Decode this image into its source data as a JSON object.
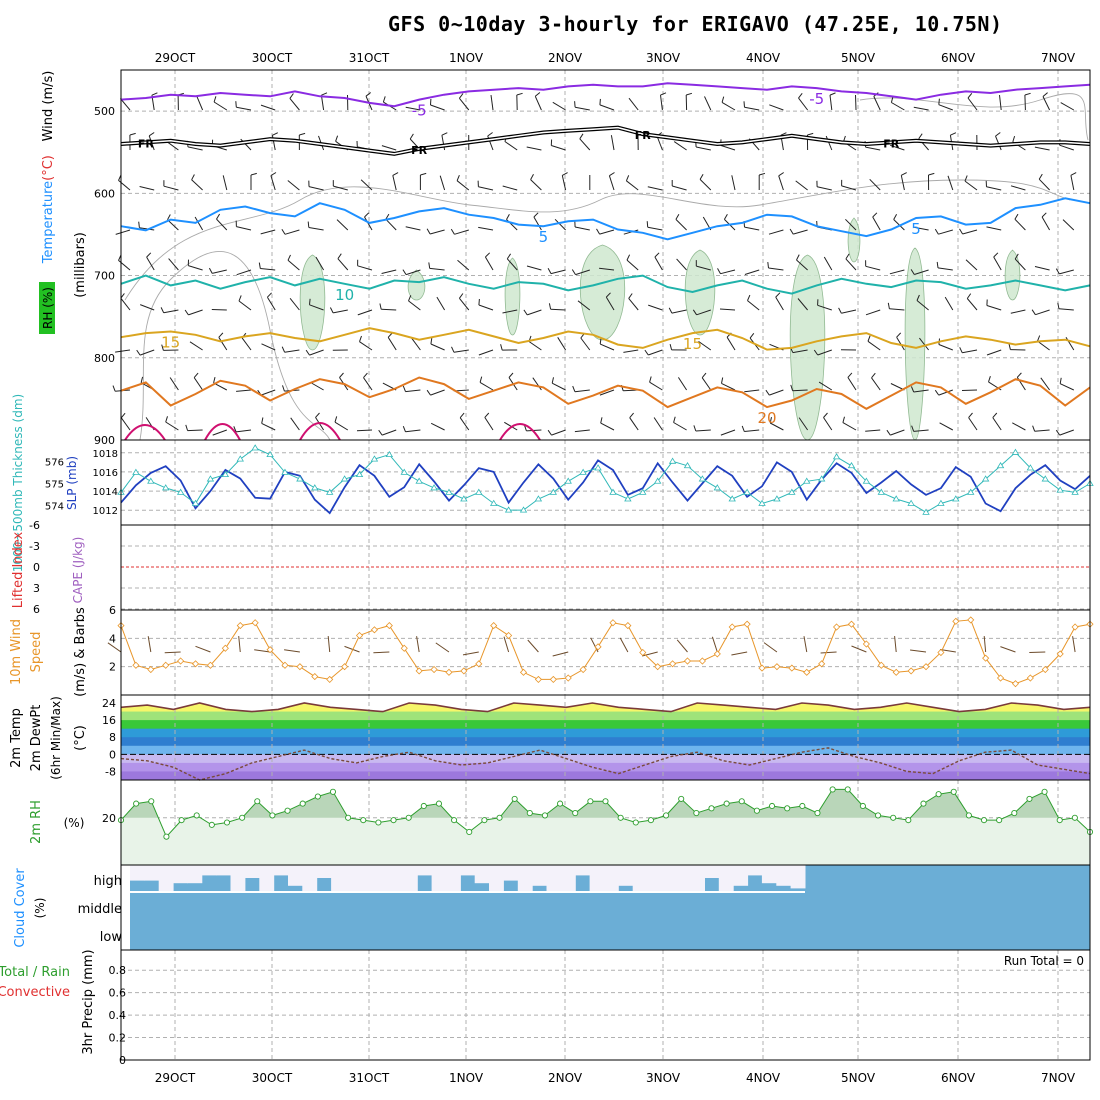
{
  "title": "GFS 0~10day 3-hourly for ERIGAVO (47.25E, 10.75N)",
  "colors": {
    "purple": "#8a2be2",
    "black": "#000000",
    "gray": "#999999",
    "blue": "#1e90ff",
    "teal": "#20b2aa",
    "gold": "#daa520",
    "orange": "#e07820",
    "magenta": "#d01070",
    "rh_fill": "#cfe8d0",
    "slp": "#2040c0",
    "thick": "#30b8b8",
    "li": "#e03030",
    "wind10": "#e8962a",
    "rh2m": "#2e9e2e",
    "rh2m_fill": "#e8f3e8",
    "cloud": "#6baed6",
    "cloud_bg": "#f4f2fa"
  },
  "chart_data": [
    {
      "type": "line",
      "panel": "upper-air",
      "xlabel_dates": [
        "29OCT",
        "30OCT",
        "31OCT",
        "1NOV",
        "2NOV",
        "3NOV",
        "4NOV",
        "5NOV",
        "6NOV",
        "7NOV"
      ],
      "y_label_parts": [
        "RH (%)",
        "Temperature",
        "(°C)",
        "Wind (m/s)"
      ],
      "y_unit": "(millibars)",
      "ylim": [
        450,
        900
      ],
      "yticks": [
        "500",
        "600",
        "700",
        "800",
        "900"
      ],
      "series": [
        {
          "name": "-5 °C",
          "label": "-5",
          "label2": "-5",
          "values": [
            486,
            484,
            480,
            482,
            478,
            480,
            482,
            476,
            482,
            484,
            490,
            494,
            486,
            480,
            476,
            474,
            472,
            474,
            470,
            468,
            470,
            470,
            466,
            468,
            470,
            472,
            474,
            470,
            472,
            476,
            478,
            482,
            486,
            480,
            476,
            478,
            474,
            472,
            470,
            468
          ]
        },
        {
          "name": "0 °C (FR)",
          "label": "FR",
          "values": [
            540,
            538,
            536,
            540,
            542,
            538,
            534,
            536,
            540,
            544,
            548,
            552,
            546,
            542,
            538,
            534,
            530,
            526,
            524,
            522,
            520,
            528,
            532,
            536,
            540,
            538,
            534,
            530,
            534,
            538,
            540,
            538,
            536,
            538,
            540,
            542,
            540,
            538,
            538,
            540
          ]
        },
        {
          "name": "5 °C",
          "label": "5",
          "label2": "5",
          "values": [
            640,
            645,
            632,
            636,
            620,
            616,
            624,
            628,
            612,
            620,
            636,
            630,
            622,
            618,
            626,
            630,
            638,
            640,
            634,
            632,
            644,
            648,
            656,
            648,
            640,
            636,
            626,
            628,
            640,
            646,
            652,
            644,
            630,
            628,
            638,
            636,
            618,
            614,
            606,
            612
          ]
        },
        {
          "name": "10 °C",
          "label": "10",
          "values": [
            710,
            700,
            712,
            706,
            716,
            708,
            702,
            712,
            704,
            710,
            716,
            706,
            708,
            702,
            710,
            716,
            708,
            710,
            718,
            712,
            704,
            700,
            714,
            720,
            712,
            706,
            716,
            722,
            712,
            704,
            710,
            714,
            706,
            708,
            716,
            712,
            706,
            712,
            718,
            712
          ]
        },
        {
          "name": "15 °C",
          "label": "15",
          "label2": "15",
          "values": [
            775,
            770,
            768,
            772,
            780,
            774,
            770,
            776,
            780,
            772,
            764,
            770,
            778,
            772,
            766,
            774,
            782,
            776,
            768,
            772,
            784,
            788,
            778,
            770,
            766,
            776,
            790,
            788,
            780,
            774,
            770,
            782,
            788,
            780,
            774,
            778,
            784,
            780,
            778,
            786
          ]
        },
        {
          "name": "20 °C",
          "label": "20",
          "values": [
            840,
            830,
            858,
            844,
            828,
            834,
            852,
            838,
            826,
            832,
            848,
            838,
            824,
            832,
            850,
            840,
            830,
            836,
            856,
            846,
            834,
            840,
            860,
            848,
            836,
            842,
            860,
            852,
            838,
            844,
            862,
            846,
            830,
            836,
            856,
            842,
            826,
            834,
            858,
            836
          ]
        }
      ]
    },
    {
      "type": "line",
      "panel": "slp-thickness",
      "ylabel_left": "1000~500mb Thickness (dm)",
      "ylabel_right": "SLP (mb)",
      "left_ticks": [
        "576",
        "575",
        "574"
      ],
      "right_ticks": [
        "1018",
        "1016",
        "1014",
        "1012"
      ],
      "series": [
        {
          "name": "SLP (mb)",
          "axis": "right",
          "values": [
            1012.8,
            1014.6,
            1015.9,
            1016.6,
            1015.1,
            1012.2,
            1014.0,
            1016.2,
            1015.3,
            1013.3,
            1013.2,
            1016.0,
            1015.6,
            1013.1,
            1011.7,
            1014.4,
            1016.7,
            1015.6,
            1013.4,
            1014.4,
            1016.8,
            1015.0,
            1013.0,
            1014.6,
            1016.4,
            1016.0,
            1012.8,
            1014.9,
            1016.8,
            1015.3,
            1013.1,
            1014.9,
            1017.2,
            1016.2,
            1013.6,
            1014.3,
            1016.9,
            1014.9,
            1013.0,
            1014.8,
            1016.6,
            1015.6,
            1013.4,
            1014.5,
            1017.0,
            1016.0,
            1013.1,
            1015.2,
            1016.9,
            1015.9,
            1013.8,
            1014.9,
            1016.1,
            1014.7,
            1013.6,
            1014.3,
            1016.5,
            1015.5,
            1012.7,
            1011.9,
            1014.3,
            1015.7,
            1016.7,
            1015.1,
            1014.2,
            1015.6
          ]
        },
        {
          "name": "Thickness (dm)",
          "axis": "left",
          "values": [
            574.6,
            575.5,
            575.1,
            574.8,
            574.6,
            574.1,
            575.2,
            575.4,
            576.1,
            576.6,
            576.3,
            575.5,
            575.2,
            574.8,
            574.6,
            575.2,
            575.4,
            576.1,
            576.3,
            575.5,
            575.1,
            574.8,
            574.6,
            574.3,
            574.6,
            574.1,
            573.8,
            573.8,
            574.3,
            574.6,
            575.1,
            575.5,
            575.7,
            574.6,
            574.3,
            574.6,
            575.1,
            576.0,
            575.8,
            575.2,
            574.8,
            574.3,
            574.6,
            574.1,
            574.3,
            574.6,
            575.1,
            575.2,
            576.2,
            575.8,
            575.1,
            574.6,
            574.3,
            574.1,
            573.7,
            574.1,
            574.3,
            574.6,
            575.2,
            575.8,
            576.4,
            575.7,
            575.2,
            574.7,
            574.6,
            575.0
          ]
        }
      ]
    },
    {
      "type": "line",
      "panel": "lifted-index",
      "ylabel": "Lifted Index",
      "ylabel_right": "CAPE (J/kg)",
      "yticks": [
        "-6",
        "-3",
        "0",
        "3",
        "6"
      ],
      "series": [
        {
          "name": "Lifted Index",
          "values": [
            0
          ]
        }
      ]
    },
    {
      "type": "line",
      "panel": "10m-wind",
      "ylabel_parts": [
        "10m Wind",
        "Speed",
        "(m/s) & Barbs"
      ],
      "yticks": [
        "2",
        "4",
        "6"
      ],
      "series": [
        {
          "name": "10m Wind Speed (m/s)",
          "values": [
            4.9,
            2.1,
            1.8,
            2.1,
            2.4,
            2.2,
            2.1,
            3.3,
            4.9,
            5.1,
            3.2,
            2.1,
            2.0,
            1.3,
            1.1,
            2.0,
            4.2,
            4.6,
            4.9,
            3.3,
            1.7,
            1.8,
            1.6,
            1.7,
            2.2,
            4.9,
            4.2,
            1.6,
            1.1,
            1.1,
            1.2,
            1.8,
            3.4,
            5.1,
            4.9,
            3.0,
            2.0,
            2.2,
            2.4,
            2.4,
            2.9,
            4.8,
            5.0,
            1.9,
            2.0,
            1.9,
            1.6,
            2.2,
            4.8,
            5.0,
            3.6,
            2.1,
            1.6,
            1.7,
            2.0,
            3.0,
            5.2,
            5.3,
            2.6,
            1.2,
            0.8,
            1.2,
            1.8,
            2.9,
            4.8,
            5.0
          ]
        }
      ]
    },
    {
      "type": "area",
      "panel": "2m-temp",
      "ylabel_parts": [
        "2m Temp",
        "2m DewPt",
        "(6hr Min/Max)",
        "(°C)"
      ],
      "yticks": [
        "24",
        "16",
        "8",
        "0",
        "-8"
      ],
      "series": [
        {
          "name": "2m Temp (°C)",
          "values": [
            22,
            23,
            21,
            24,
            21,
            20,
            21,
            24,
            22,
            21,
            20,
            24,
            23,
            21,
            20,
            24,
            23,
            22,
            24,
            22,
            21,
            20,
            24,
            23,
            22,
            21,
            24,
            23,
            21,
            22,
            24,
            22,
            20,
            21,
            24,
            23,
            21,
            22
          ]
        },
        {
          "name": "2m DewPt (°C)",
          "values": [
            -2,
            -3,
            -6,
            -12,
            -9,
            -4,
            -1,
            2,
            -2,
            -4,
            -1,
            1,
            -3,
            -5,
            -4,
            -1,
            2,
            -2,
            -6,
            -9,
            -5,
            -1,
            1,
            -3,
            -5,
            -2,
            1,
            3,
            -1,
            -4,
            -8,
            -9,
            -3,
            1,
            2,
            -5,
            -7,
            -9
          ]
        }
      ]
    },
    {
      "type": "area",
      "panel": "2m-rh",
      "ylabel": "2m RH",
      "yunit": "(%)",
      "yticks": [
        "20"
      ],
      "series": [
        {
          "name": "2m RH (%)",
          "values": [
            19,
            26,
            27,
            12,
            19,
            21,
            17,
            18,
            20,
            27,
            21,
            23,
            26,
            29,
            31,
            20,
            19,
            18,
            19,
            20,
            25,
            26,
            19,
            14,
            19,
            20,
            28,
            22,
            21,
            26,
            22,
            27,
            27,
            20,
            18,
            19,
            21,
            28,
            22,
            24,
            26,
            27,
            23,
            25,
            24,
            25,
            22,
            32,
            32,
            25,
            21,
            20,
            19,
            26,
            30,
            31,
            21,
            19,
            19,
            22,
            28,
            31,
            19,
            20,
            14
          ]
        }
      ]
    },
    {
      "type": "bar",
      "panel": "cloud-cover",
      "ylabel": "Cloud Cover",
      "yunit": "(%)",
      "layers": [
        "high",
        "middle",
        "low"
      ],
      "series": [
        {
          "name": "high",
          "values": [
            0.4,
            0.4,
            0,
            0.3,
            0.3,
            0.6,
            0.6,
            0,
            0.5,
            0,
            0.6,
            0.2,
            0,
            0.5,
            0,
            0,
            0,
            0,
            0,
            0,
            0.6,
            0,
            0,
            0.6,
            0.3,
            0,
            0.4,
            0,
            0.2,
            0,
            0,
            0.6,
            0,
            0,
            0.2,
            0,
            0,
            0,
            0,
            0,
            0.5,
            0,
            0.2,
            0.6,
            0.3,
            0.2,
            0.1
          ]
        },
        {
          "name": "middle",
          "values": [
            1
          ]
        },
        {
          "name": "low",
          "values": [
            1
          ]
        }
      ]
    },
    {
      "type": "bar",
      "panel": "precip",
      "ylabel_parts": [
        "Total / Rain",
        "Convective",
        "3hr Precip (mm)"
      ],
      "yticks": [
        "0",
        "0.2",
        "0.4",
        "0.6",
        "0.8"
      ],
      "run_total": "Run Total = 0",
      "series": [
        {
          "name": "3hr Precip (mm)",
          "values": [
            0
          ]
        }
      ]
    }
  ]
}
